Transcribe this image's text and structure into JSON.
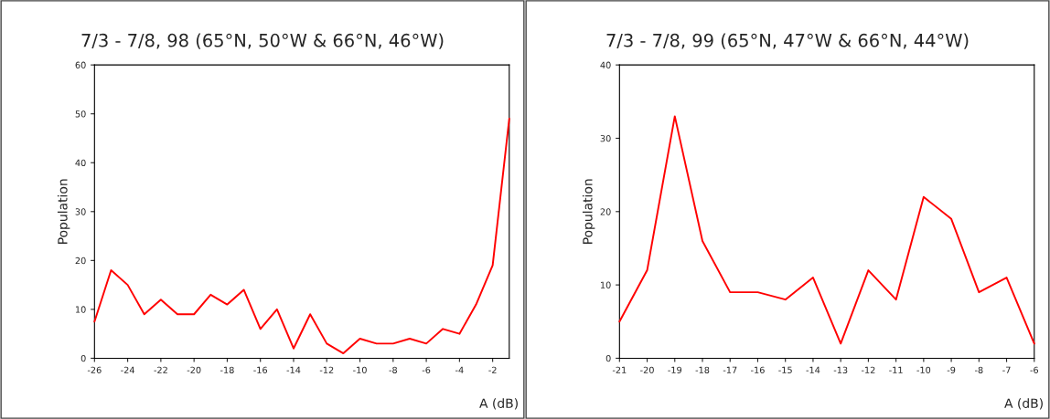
{
  "chart_data": [
    {
      "type": "line",
      "title": "7/3 - 7/8, 98 (65°N, 50°W & 66°N, 46°W)",
      "xlabel": "A (dB)",
      "ylabel": "Population",
      "x": [
        -26,
        -25,
        -24,
        -23,
        -22,
        -21,
        -20,
        -19,
        -18,
        -17,
        -16,
        -15,
        -14,
        -13,
        -12,
        -11,
        -10,
        -9,
        -8,
        -7,
        -6,
        -5,
        -4,
        -3,
        -2,
        -1
      ],
      "series": [
        {
          "color": "#ff0000",
          "values": [
            7.5,
            18,
            15,
            9,
            12,
            9,
            9,
            13,
            11,
            14,
            6,
            10,
            2,
            9,
            3,
            1,
            4,
            3,
            3,
            4,
            3,
            6,
            5,
            11,
            19,
            49
          ]
        }
      ],
      "xlim": [
        -26,
        -1
      ],
      "xticks": [
        -26,
        -24,
        -22,
        -20,
        -18,
        -16,
        -14,
        -12,
        -10,
        -8,
        -6,
        -4,
        -2
      ],
      "ylim": [
        0,
        60
      ],
      "yticks": [
        0,
        10,
        20,
        30,
        40,
        50,
        60
      ],
      "grid": false,
      "legend": false
    },
    {
      "type": "line",
      "title": "7/3 - 7/8, 99 (65°N, 47°W & 66°N, 44°W)",
      "xlabel": "A (dB)",
      "ylabel": "Population",
      "x": [
        -21,
        -20,
        -19,
        -18,
        -17,
        -16,
        -15,
        -14,
        -13,
        -12,
        -11,
        -10,
        -9,
        -8,
        -7,
        -6
      ],
      "series": [
        {
          "color": "#ff0000",
          "values": [
            5,
            12,
            33,
            16,
            9,
            9,
            8,
            11,
            2,
            12,
            8,
            22,
            19,
            9,
            11,
            2
          ]
        }
      ],
      "xlim": [
        -21,
        -6
      ],
      "xticks": [
        -21,
        -20,
        -19,
        -18,
        -17,
        -16,
        -15,
        -14,
        -13,
        -12,
        -11,
        -10,
        -9,
        -8,
        -7,
        -6
      ],
      "ylim": [
        0,
        40
      ],
      "yticks": [
        0,
        10,
        20,
        30,
        40
      ],
      "grid": false,
      "legend": false
    }
  ]
}
